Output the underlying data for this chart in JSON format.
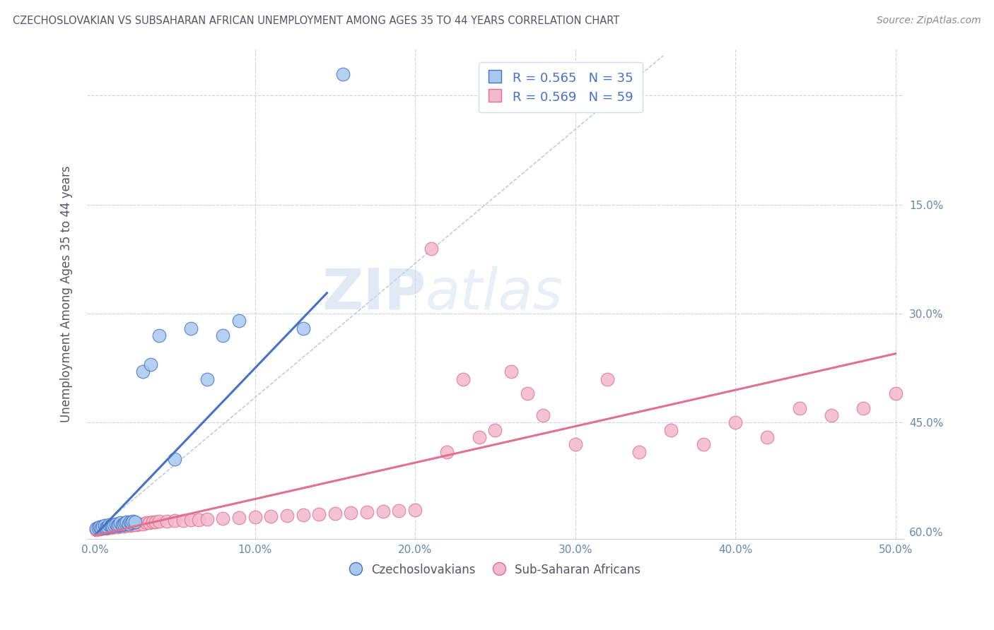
{
  "title": "CZECHOSLOVAKIAN VS SUBSAHARAN AFRICAN UNEMPLOYMENT AMONG AGES 35 TO 44 YEARS CORRELATION CHART",
  "source": "Source: ZipAtlas.com",
  "ylabel": "Unemployment Among Ages 35 to 44 years",
  "xlim": [
    -0.005,
    0.505
  ],
  "ylim": [
    -0.01,
    0.665
  ],
  "xticks": [
    0.0,
    0.1,
    0.2,
    0.3,
    0.4,
    0.5
  ],
  "yticks": [
    0.0,
    0.15,
    0.3,
    0.45,
    0.6
  ],
  "xticklabels": [
    "0.0%",
    "10.0%",
    "20.0%",
    "30.0%",
    "40.0%",
    "50.0%"
  ],
  "yticklabels_right": [
    "60.0%",
    "45.0%",
    "30.0%",
    "15.0%",
    ""
  ],
  "legend_r1": "R = 0.565",
  "legend_n1": "N = 35",
  "legend_r2": "R = 0.569",
  "legend_n2": "N = 59",
  "color_czech": "#a8c8f0",
  "color_subsaharan": "#f4b8cc",
  "color_czech_line": "#4472c4",
  "color_subsaharan_line": "#e07090",
  "color_diagonal": "#b8c4d4",
  "watermark_zip": "ZIP",
  "watermark_atlas": "atlas",
  "czech_x": [
    0.001,
    0.002,
    0.003,
    0.004,
    0.005,
    0.006,
    0.007,
    0.008,
    0.009,
    0.01,
    0.011,
    0.012,
    0.013,
    0.014,
    0.015,
    0.016,
    0.017,
    0.018,
    0.019,
    0.02,
    0.021,
    0.022,
    0.023,
    0.024,
    0.025,
    0.03,
    0.035,
    0.04,
    0.05,
    0.06,
    0.07,
    0.08,
    0.09,
    0.13,
    0.155
  ],
  "czech_y": [
    0.005,
    0.006,
    0.007,
    0.005,
    0.008,
    0.009,
    0.006,
    0.007,
    0.01,
    0.009,
    0.008,
    0.01,
    0.011,
    0.009,
    0.01,
    0.012,
    0.01,
    0.011,
    0.012,
    0.013,
    0.011,
    0.013,
    0.012,
    0.014,
    0.013,
    0.22,
    0.23,
    0.27,
    0.1,
    0.28,
    0.21,
    0.27,
    0.29,
    0.28,
    0.63
  ],
  "subsaharan_x": [
    0.001,
    0.003,
    0.005,
    0.007,
    0.009,
    0.01,
    0.012,
    0.014,
    0.016,
    0.018,
    0.02,
    0.022,
    0.024,
    0.026,
    0.028,
    0.03,
    0.032,
    0.034,
    0.036,
    0.038,
    0.04,
    0.045,
    0.05,
    0.055,
    0.06,
    0.065,
    0.07,
    0.08,
    0.09,
    0.1,
    0.11,
    0.12,
    0.13,
    0.14,
    0.15,
    0.16,
    0.17,
    0.18,
    0.19,
    0.2,
    0.21,
    0.22,
    0.23,
    0.24,
    0.25,
    0.26,
    0.27,
    0.28,
    0.3,
    0.32,
    0.34,
    0.36,
    0.38,
    0.4,
    0.42,
    0.44,
    0.46,
    0.48,
    0.5
  ],
  "subsaharan_y": [
    0.003,
    0.004,
    0.005,
    0.005,
    0.006,
    0.006,
    0.007,
    0.007,
    0.008,
    0.008,
    0.009,
    0.009,
    0.01,
    0.01,
    0.011,
    0.011,
    0.012,
    0.012,
    0.013,
    0.013,
    0.014,
    0.014,
    0.015,
    0.015,
    0.016,
    0.016,
    0.017,
    0.018,
    0.019,
    0.02,
    0.021,
    0.022,
    0.023,
    0.024,
    0.025,
    0.026,
    0.027,
    0.028,
    0.029,
    0.03,
    0.39,
    0.11,
    0.21,
    0.13,
    0.14,
    0.22,
    0.19,
    0.16,
    0.12,
    0.21,
    0.11,
    0.14,
    0.12,
    0.15,
    0.13,
    0.17,
    0.16,
    0.17,
    0.19
  ],
  "czech_line_x": [
    0.0,
    0.145
  ],
  "czech_line_y_intercept": -0.005,
  "czech_line_slope": 2.3,
  "subsaharan_line_x": [
    0.0,
    0.5
  ],
  "subsaharan_line_y_intercept": -0.005,
  "subsaharan_line_slope": 0.5,
  "bottom_legend_labels": [
    "Czechoslovakians",
    "Sub-Saharan Africans"
  ]
}
